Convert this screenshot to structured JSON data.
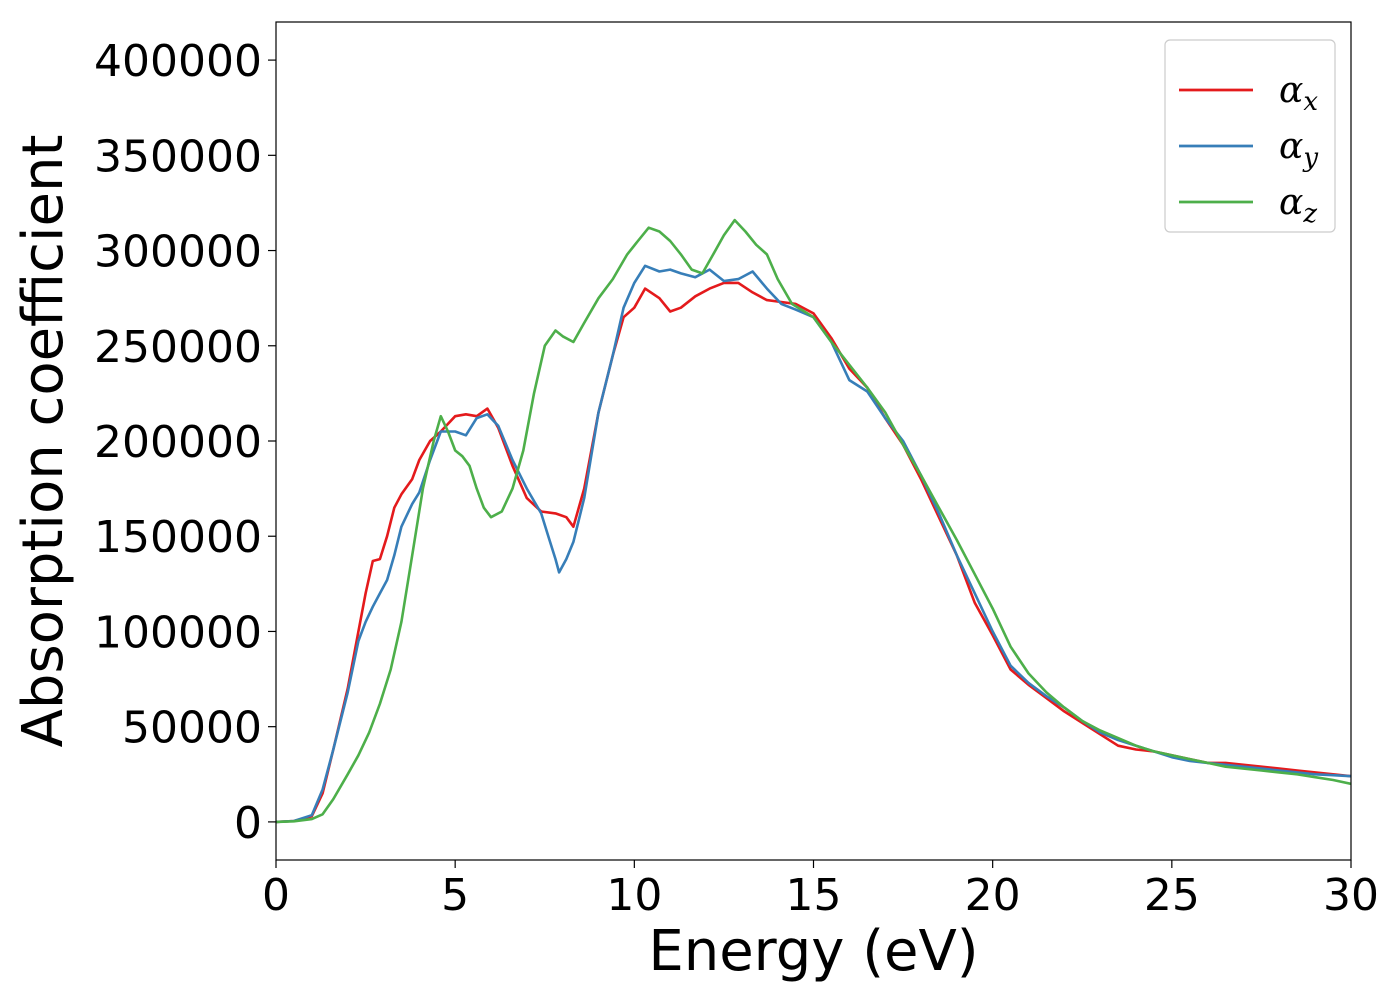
{
  "chart_data": {
    "type": "line",
    "title": "",
    "xlabel": "Energy (eV)",
    "ylabel": "Absorption coefficient",
    "xlim": [
      0,
      30
    ],
    "ylim": [
      -20000,
      420000
    ],
    "xticks": [
      0,
      5,
      10,
      15,
      20,
      25,
      30
    ],
    "xtick_labels": [
      "0",
      "5",
      "10",
      "15",
      "20",
      "25",
      "30"
    ],
    "yticks": [
      0,
      50000,
      100000,
      150000,
      200000,
      250000,
      300000,
      350000,
      400000
    ],
    "ytick_labels": [
      "0",
      "50000",
      "100000",
      "150000",
      "200000",
      "250000",
      "300000",
      "350000",
      "400000"
    ],
    "grid": false,
    "legend_position": "top-right",
    "series": [
      {
        "name": "α_x",
        "symbol": "α",
        "subscript": "x",
        "color": "#e41a1c",
        "x": [
          0,
          0.5,
          1.0,
          1.3,
          1.6,
          2.0,
          2.3,
          2.5,
          2.7,
          2.9,
          3.1,
          3.3,
          3.5,
          3.8,
          4.0,
          4.3,
          4.6,
          5.0,
          5.3,
          5.6,
          5.9,
          6.2,
          6.6,
          7.0,
          7.4,
          7.8,
          8.1,
          8.3,
          8.6,
          9.0,
          9.4,
          9.7,
          10.0,
          10.3,
          10.7,
          11.0,
          11.3,
          11.7,
          12.1,
          12.5,
          12.9,
          13.3,
          13.7,
          14.1,
          14.5,
          15.0,
          15.5,
          16.0,
          16.5,
          17.0,
          17.5,
          18.0,
          18.5,
          19.0,
          19.5,
          20.0,
          20.5,
          21.0,
          21.5,
          22.0,
          22.5,
          23.0,
          23.5,
          24.0,
          24.5,
          25.0,
          25.5,
          26.0,
          26.5,
          27.0,
          27.5,
          28.0,
          28.5,
          29.0,
          29.5,
          30.0
        ],
        "values": [
          0,
          500,
          3000,
          15000,
          38000,
          70000,
          100000,
          120000,
          137000,
          138000,
          150000,
          165000,
          172000,
          180000,
          190000,
          200000,
          205000,
          213000,
          214000,
          213000,
          217000,
          207000,
          187000,
          170000,
          163000,
          162000,
          160000,
          155000,
          175000,
          215000,
          245000,
          265000,
          270000,
          280000,
          275000,
          268000,
          270000,
          276000,
          280000,
          283000,
          283000,
          278000,
          274000,
          273000,
          272000,
          267000,
          254000,
          238000,
          228000,
          212000,
          198000,
          180000,
          160000,
          140000,
          115000,
          98000,
          80000,
          72000,
          65000,
          58000,
          52000,
          46000,
          40000,
          38000,
          37000,
          35000,
          33000,
          31000,
          31000,
          30000,
          29000,
          28000,
          27000,
          26000,
          25000,
          24000
        ]
      },
      {
        "name": "α_y",
        "symbol": "α",
        "subscript": "y",
        "color": "#377eb8",
        "x": [
          0,
          0.5,
          1.0,
          1.3,
          1.6,
          2.0,
          2.3,
          2.5,
          2.7,
          2.9,
          3.1,
          3.3,
          3.5,
          3.8,
          4.0,
          4.3,
          4.6,
          5.0,
          5.3,
          5.6,
          5.9,
          6.2,
          6.6,
          7.0,
          7.4,
          7.6,
          7.8,
          7.9,
          8.1,
          8.3,
          8.6,
          9.0,
          9.4,
          9.7,
          10.0,
          10.3,
          10.7,
          11.0,
          11.3,
          11.7,
          12.1,
          12.5,
          12.9,
          13.3,
          13.7,
          14.1,
          14.5,
          15.0,
          15.5,
          16.0,
          16.5,
          17.0,
          17.5,
          18.0,
          18.5,
          19.0,
          19.5,
          20.0,
          20.5,
          21.0,
          21.5,
          22.0,
          22.5,
          23.0,
          23.5,
          24.0,
          24.5,
          25.0,
          25.5,
          26.0,
          26.5,
          27.0,
          27.5,
          28.0,
          28.5,
          29.0,
          29.5,
          30.0
        ],
        "values": [
          0,
          500,
          3500,
          17000,
          38000,
          68000,
          95000,
          105000,
          113000,
          120000,
          127000,
          140000,
          155000,
          167000,
          173000,
          190000,
          205000,
          205000,
          203000,
          212000,
          214000,
          208000,
          190000,
          175000,
          162000,
          150000,
          138000,
          131000,
          138000,
          147000,
          170000,
          215000,
          245000,
          270000,
          283000,
          292000,
          289000,
          290000,
          288000,
          286000,
          290000,
          284000,
          285000,
          289000,
          280000,
          272000,
          269000,
          265000,
          252000,
          232000,
          226000,
          212000,
          200000,
          182000,
          162000,
          140000,
          120000,
          100000,
          82000,
          73000,
          66000,
          60000,
          53000,
          47000,
          43000,
          40000,
          37000,
          34000,
          32000,
          31000,
          30000,
          29000,
          28000,
          27000,
          26000,
          25000,
          24500,
          24000
        ]
      },
      {
        "name": "α_z",
        "symbol": "α",
        "subscript": "z",
        "color": "#4daf4a",
        "x": [
          0,
          0.5,
          1.0,
          1.3,
          1.6,
          2.0,
          2.3,
          2.6,
          2.9,
          3.2,
          3.5,
          3.8,
          4.1,
          4.4,
          4.6,
          4.8,
          5.0,
          5.2,
          5.4,
          5.6,
          5.8,
          6.0,
          6.3,
          6.6,
          6.9,
          7.2,
          7.5,
          7.8,
          8.0,
          8.3,
          8.6,
          9.0,
          9.4,
          9.8,
          10.1,
          10.4,
          10.7,
          11.0,
          11.3,
          11.6,
          11.9,
          12.2,
          12.5,
          12.8,
          13.1,
          13.4,
          13.7,
          14.0,
          14.4,
          15.0,
          15.5,
          16.0,
          16.5,
          17.0,
          17.5,
          18.0,
          18.5,
          19.0,
          19.5,
          20.0,
          20.5,
          21.0,
          21.5,
          22.0,
          22.5,
          23.0,
          23.5,
          24.0,
          24.5,
          25.0,
          25.5,
          26.0,
          26.5,
          27.0,
          27.5,
          28.0,
          28.5,
          29.0,
          29.5,
          30.0
        ],
        "values": [
          0,
          300,
          1500,
          4000,
          12000,
          25000,
          35000,
          47000,
          62000,
          80000,
          105000,
          140000,
          175000,
          200000,
          213000,
          205000,
          195000,
          192000,
          187000,
          175000,
          165000,
          160000,
          163000,
          175000,
          195000,
          225000,
          250000,
          258000,
          255000,
          252000,
          262000,
          275000,
          285000,
          298000,
          305000,
          312000,
          310000,
          305000,
          298000,
          290000,
          288000,
          298000,
          308000,
          316000,
          310000,
          303000,
          298000,
          285000,
          272000,
          265000,
          252000,
          240000,
          228000,
          215000,
          198000,
          182000,
          165000,
          148000,
          130000,
          112000,
          92000,
          78000,
          68000,
          60000,
          53000,
          48000,
          44000,
          40000,
          37000,
          35000,
          33000,
          31000,
          29000,
          28000,
          27000,
          26000,
          25000,
          23500,
          22000,
          20000
        ]
      }
    ]
  }
}
